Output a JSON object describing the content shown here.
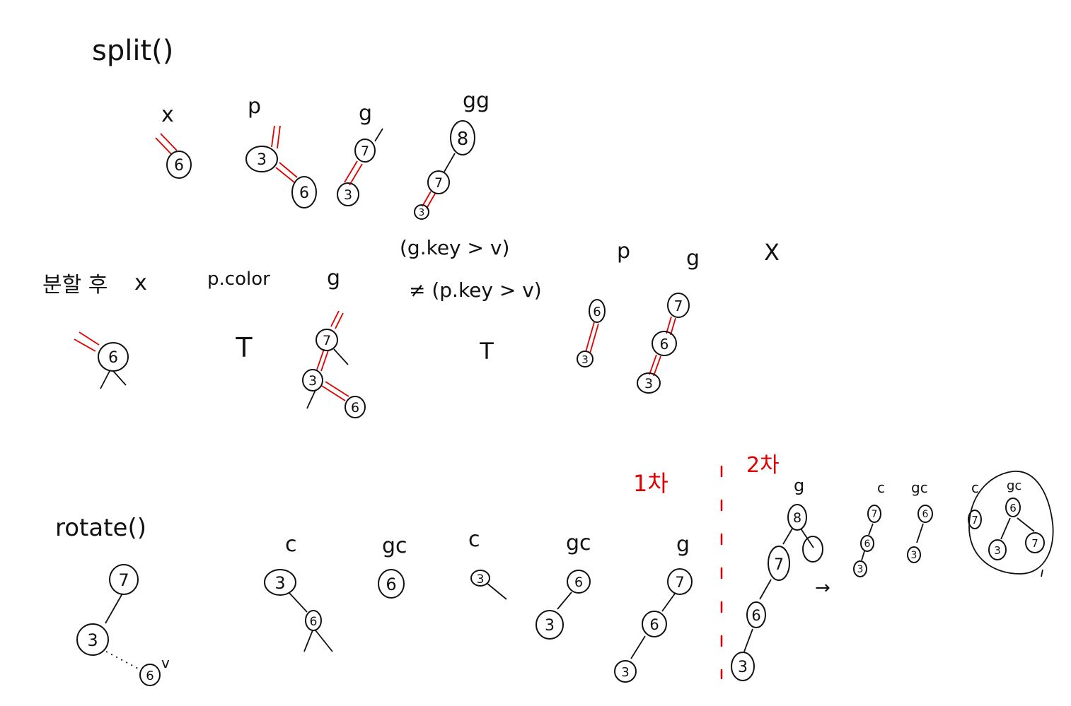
{
  "colors": {
    "ink": "#111111",
    "red": "#e00000",
    "background": "#ffffff"
  },
  "headings": {
    "split": "split()",
    "rotate": "rotate()",
    "after_split": "분할 후",
    "attempt1": "1차",
    "attempt2": "2차"
  },
  "labels": {
    "x": "x",
    "p": "p",
    "g": "g",
    "gg": "gg",
    "p_color": "p.color",
    "T": "T",
    "cond_top": "(g.key > v)",
    "cond_bottom": "≠ (p.key > v)",
    "X": "X",
    "c": "c",
    "gc": "gc",
    "v": "v",
    "arrow": "→"
  },
  "nodes": {
    "three": "3",
    "six": "6",
    "seven": "7",
    "eight": "8"
  }
}
